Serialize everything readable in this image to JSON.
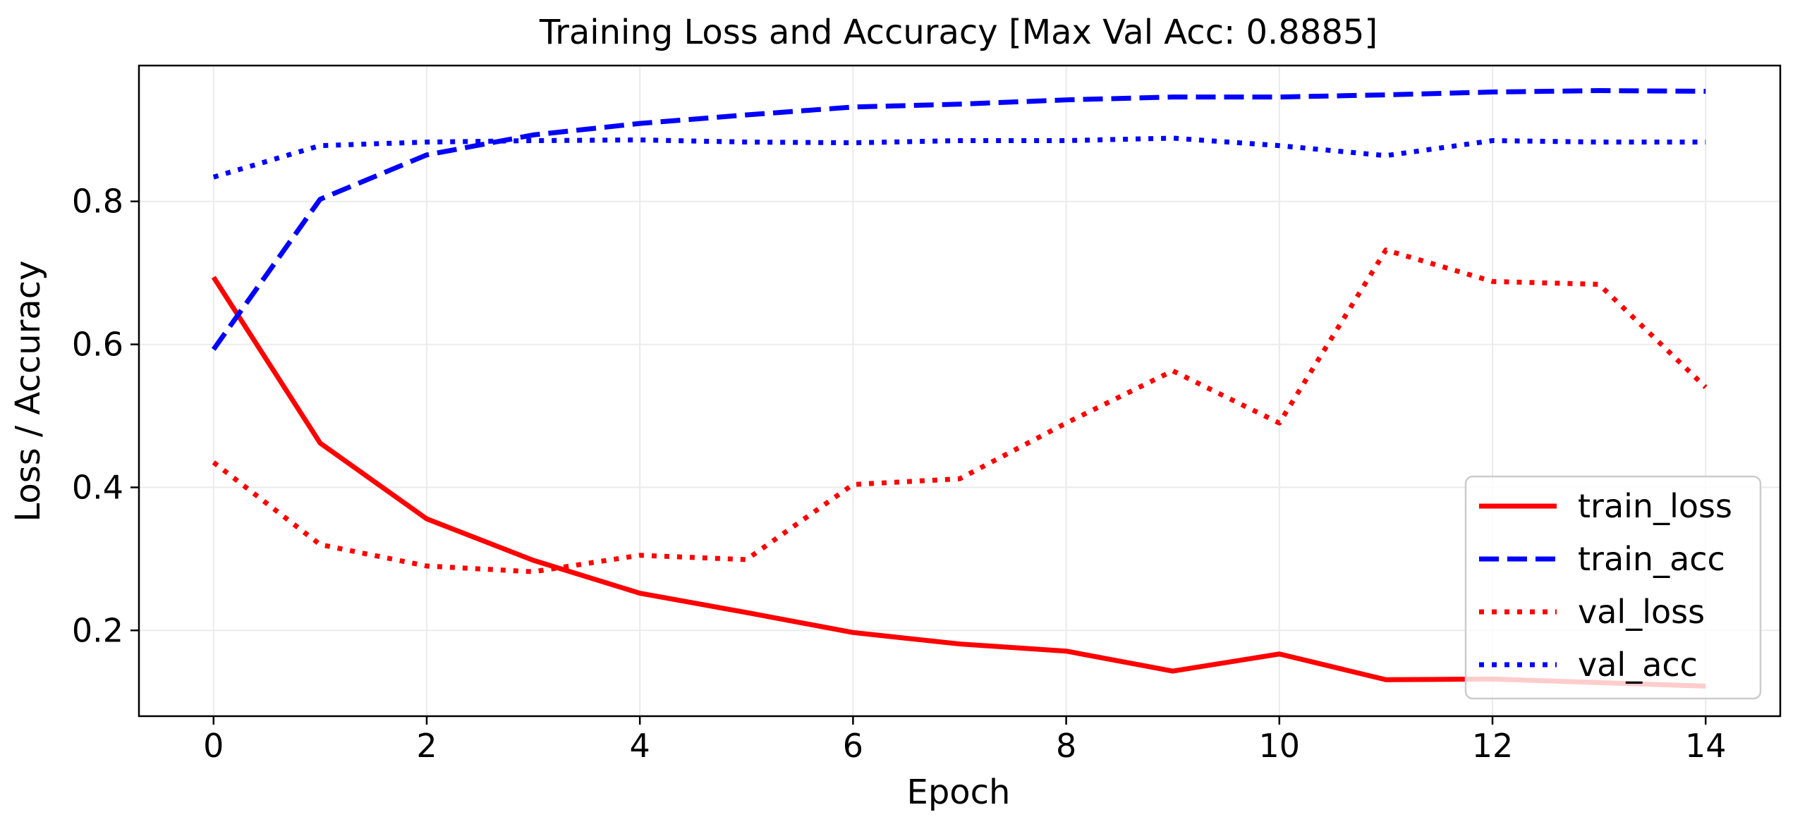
{
  "chart_data": {
    "type": "line",
    "title": "Training Loss and Accuracy [Max Val Acc: 0.8885]",
    "xlabel": "Epoch",
    "ylabel": "Loss / Accuracy",
    "xlim": [
      -0.7,
      14.7
    ],
    "ylim": [
      0.08,
      0.99
    ],
    "xticks": [
      0,
      2,
      4,
      6,
      8,
      10,
      12,
      14
    ],
    "yticks": [
      0.2,
      0.4,
      0.6,
      0.8
    ],
    "grid": true,
    "legend_position": "lower-right",
    "x": [
      0,
      1,
      2,
      3,
      4,
      5,
      6,
      7,
      8,
      9,
      10,
      11,
      12,
      13,
      14
    ],
    "series": [
      {
        "name": "train_loss",
        "color": "#ff0000",
        "style": "solid",
        "values": [
          0.694,
          0.462,
          0.356,
          0.298,
          0.252,
          0.225,
          0.197,
          0.181,
          0.171,
          0.143,
          0.167,
          0.131,
          0.132,
          0.127,
          0.122
        ]
      },
      {
        "name": "train_acc",
        "color": "#0000ff",
        "style": "dashed",
        "values": [
          0.593,
          0.803,
          0.865,
          0.893,
          0.909,
          0.921,
          0.932,
          0.936,
          0.942,
          0.946,
          0.946,
          0.949,
          0.953,
          0.955,
          0.954
        ]
      },
      {
        "name": "val_loss",
        "color": "#ff0000",
        "style": "dotted",
        "values": [
          0.435,
          0.32,
          0.29,
          0.282,
          0.305,
          0.299,
          0.404,
          0.412,
          0.49,
          0.563,
          0.49,
          0.732,
          0.688,
          0.684,
          0.54
        ]
      },
      {
        "name": "val_acc",
        "color": "#0000ff",
        "style": "dotted",
        "values": [
          0.834,
          0.878,
          0.883,
          0.885,
          0.886,
          0.883,
          0.882,
          0.885,
          0.885,
          0.8885,
          0.878,
          0.864,
          0.885,
          0.883,
          0.883
        ]
      }
    ]
  }
}
